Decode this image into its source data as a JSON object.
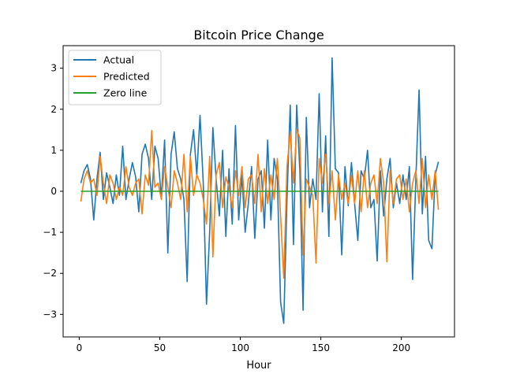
{
  "chart_data": {
    "type": "line",
    "title": "Bitcoin Price Change",
    "xlabel": "Hour",
    "ylabel": "",
    "xlim": [
      -10,
      233
    ],
    "ylim": [
      -3.55,
      3.55
    ],
    "xticks": [
      0,
      50,
      100,
      150,
      200
    ],
    "yticks": [
      -3,
      -2,
      -1,
      0,
      1,
      2,
      3
    ],
    "legend_position": "top-left",
    "grid": false,
    "series": [
      {
        "name": "Actual",
        "color": "#1f77b4",
        "x": [
          1,
          3,
          5,
          7,
          9,
          11,
          13,
          15,
          17,
          19,
          21,
          23,
          25,
          27,
          29,
          31,
          33,
          35,
          37,
          39,
          41,
          43,
          45,
          47,
          49,
          51,
          53,
          55,
          57,
          59,
          61,
          63,
          65,
          67,
          69,
          71,
          73,
          75,
          77,
          79,
          81,
          83,
          85,
          87,
          89,
          91,
          93,
          95,
          97,
          99,
          101,
          103,
          105,
          107,
          109,
          111,
          113,
          115,
          117,
          119,
          121,
          123,
          125,
          127,
          129,
          131,
          133,
          135,
          137,
          139,
          141,
          143,
          145,
          147,
          149,
          151,
          153,
          155,
          157,
          159,
          161,
          163,
          165,
          167,
          169,
          171,
          173,
          175,
          177,
          179,
          181,
          183,
          185,
          187,
          189,
          191,
          193,
          195,
          197,
          199,
          201,
          203,
          205,
          207,
          209,
          211,
          213,
          215,
          217,
          219,
          221,
          223
        ],
        "y": [
          0.2,
          0.5,
          0.65,
          0.3,
          -0.7,
          0.3,
          0.95,
          -0.2,
          0.45,
          0.1,
          -0.3,
          0.4,
          -0.1,
          1.1,
          -0.2,
          0.3,
          0.7,
          0.35,
          -0.5,
          0.9,
          1.15,
          0.8,
          -0.2,
          1.1,
          0.8,
          -0.15,
          1.25,
          -1.5,
          0.9,
          1.45,
          0.55,
          0.3,
          -0.2,
          -2.2,
          0.9,
          1.5,
          0.4,
          1.85,
          0.2,
          -2.75,
          -1.0,
          1.55,
          0.3,
          -0.6,
          1.0,
          -1.1,
          0.55,
          -0.8,
          1.6,
          -0.7,
          0.4,
          -1.0,
          -0.3,
          0.6,
          -1.15,
          0.3,
          0.5,
          -0.9,
          1.25,
          -0.7,
          0.8,
          0.3,
          -2.7,
          -3.22,
          -0.2,
          2.1,
          -1.3,
          2.1,
          0.5,
          -2.9,
          1.8,
          -0.4,
          0.3,
          -0.2,
          2.38,
          -0.5,
          1.35,
          -1.1,
          3.25,
          0.55,
          0.45,
          -1.55,
          0.6,
          -0.35,
          0.7,
          -0.3,
          -1.2,
          0.5,
          0.3,
          1.0,
          -0.4,
          -0.2,
          -1.7,
          0.5,
          -0.6,
          0.3,
          0.8,
          -0.4,
          0.2,
          -0.3,
          0.4,
          -0.2,
          0.6,
          -2.15,
          0.3,
          2.47,
          -0.55,
          0.85,
          -1.2,
          -1.4,
          0.4,
          0.72
        ]
      },
      {
        "name": "Predicted",
        "color": "#ff7f0e",
        "x": [
          1,
          3,
          5,
          7,
          9,
          11,
          13,
          15,
          17,
          19,
          21,
          23,
          25,
          27,
          29,
          31,
          33,
          35,
          37,
          39,
          41,
          43,
          45,
          47,
          49,
          51,
          53,
          55,
          57,
          59,
          61,
          63,
          65,
          67,
          69,
          71,
          73,
          75,
          77,
          79,
          81,
          83,
          85,
          87,
          89,
          91,
          93,
          95,
          97,
          99,
          101,
          103,
          105,
          107,
          109,
          111,
          113,
          115,
          117,
          119,
          121,
          123,
          125,
          127,
          129,
          131,
          133,
          135,
          137,
          139,
          141,
          143,
          145,
          147,
          149,
          151,
          153,
          155,
          157,
          159,
          161,
          163,
          165,
          167,
          169,
          171,
          173,
          175,
          177,
          179,
          181,
          183,
          185,
          187,
          189,
          191,
          193,
          195,
          197,
          199,
          201,
          203,
          205,
          207,
          209,
          211,
          213,
          215,
          217,
          219,
          221,
          223
        ],
        "y": [
          -0.25,
          0.3,
          0.5,
          0.2,
          0.3,
          -0.1,
          0.85,
          0.2,
          -0.3,
          0.4,
          0.2,
          -0.2,
          0.1,
          -0.1,
          0.6,
          0.1,
          -0.1,
          0.2,
          0.3,
          -0.55,
          0.4,
          0.15,
          1.48,
          0.1,
          0.2,
          -0.2,
          0.6,
          0.1,
          -0.4,
          0.5,
          0.2,
          -0.2,
          0.9,
          -0.5,
          0.85,
          -0.1,
          0.4,
          0.2,
          -0.2,
          -0.8,
          0.85,
          -1.6,
          0.4,
          0.7,
          -0.4,
          0.35,
          0.1,
          -0.4,
          0.5,
          -0.1,
          0.6,
          -0.4,
          0.3,
          0.4,
          -0.3,
          0.9,
          -0.5,
          0.55,
          -0.3,
          0.4,
          -0.2,
          0.8,
          -0.6,
          -2.12,
          0.6,
          1.45,
          0.2,
          1.5,
          1.3,
          -1.55,
          0.3,
          0.1,
          -0.1,
          -1.75,
          0.8,
          0.2,
          0.9,
          -0.3,
          0.5,
          -0.7,
          0.4,
          -0.2,
          0.2,
          -0.3,
          0.4,
          -0.3,
          0.5,
          -0.5,
          0.5,
          -0.4,
          0.2,
          0.4,
          -0.3,
          0.8,
          0.2,
          -1.72,
          0.5,
          -0.3,
          0.3,
          0.4,
          -0.2,
          0.3,
          -0.5,
          0.2,
          0.5,
          -0.3,
          0.8,
          -0.4,
          0.4,
          -0.2,
          0.5,
          -0.45
        ]
      },
      {
        "name": "Zero line",
        "color": "#2ca02c",
        "x": [
          1,
          223
        ],
        "y": [
          0,
          0
        ]
      }
    ]
  }
}
